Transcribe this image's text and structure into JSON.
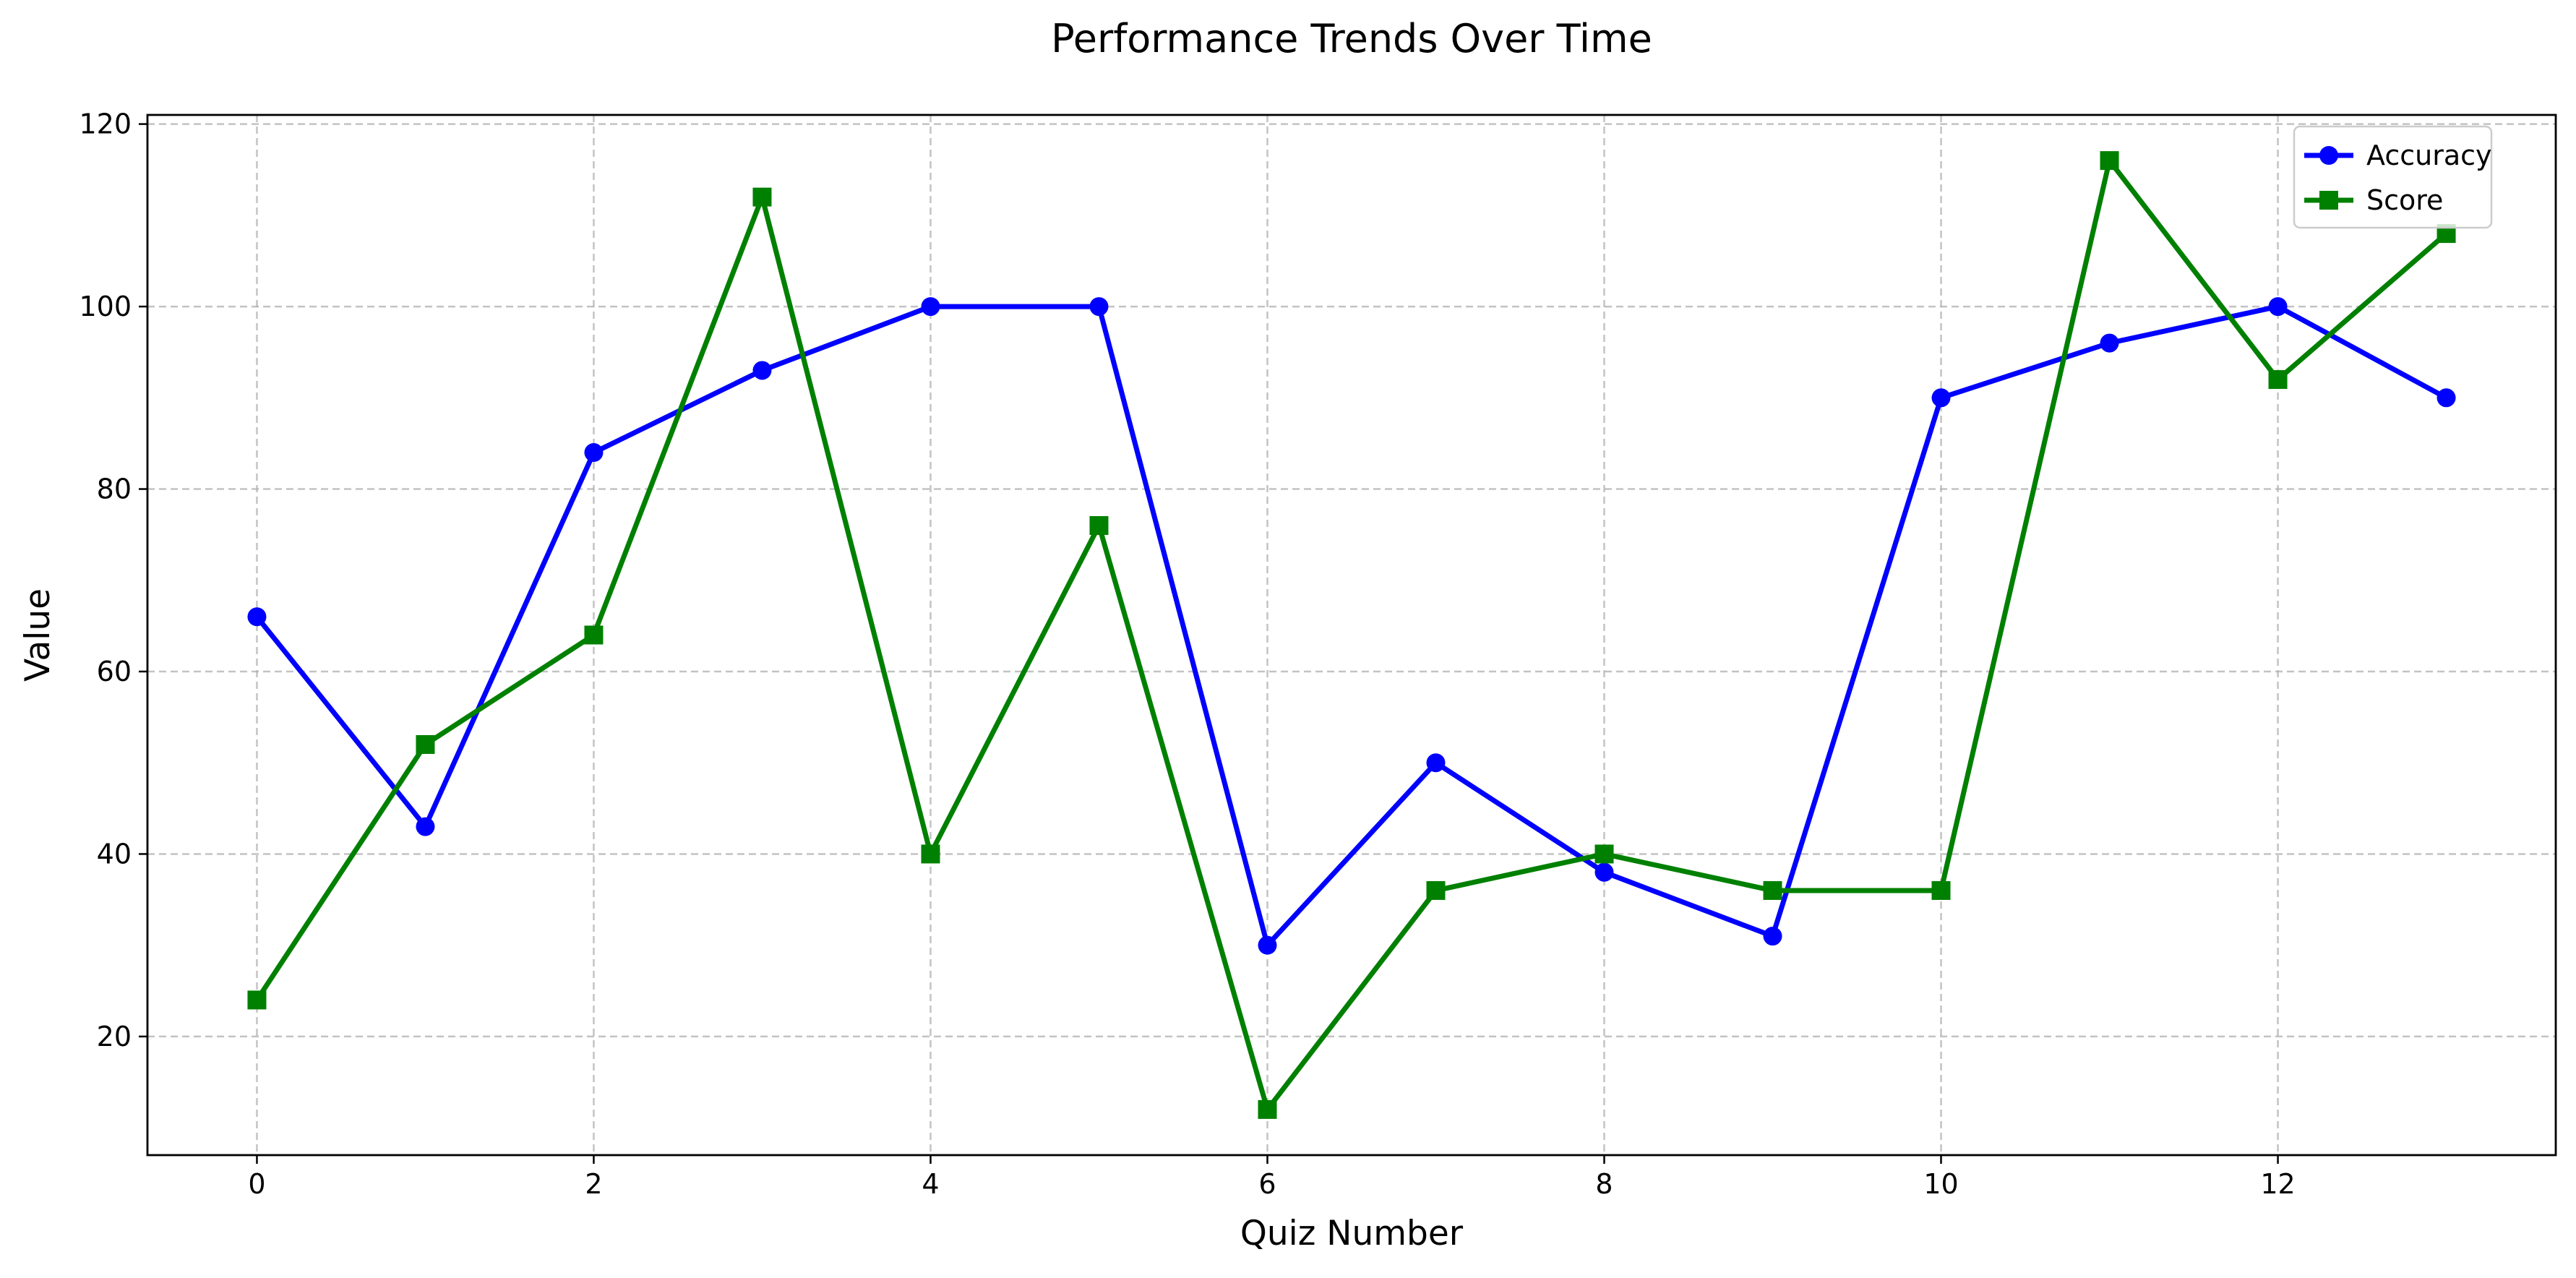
{
  "chart_data": {
    "type": "line",
    "title": "Performance Trends Over Time",
    "xlabel": "Quiz Number",
    "ylabel": "Value",
    "x": [
      0,
      1,
      2,
      3,
      4,
      5,
      6,
      7,
      8,
      9,
      10,
      11,
      12,
      13
    ],
    "xlim": [
      -0.65,
      13.65
    ],
    "ylim": [
      7,
      121
    ],
    "xticks": [
      0,
      2,
      4,
      6,
      8,
      10,
      12
    ],
    "yticks": [
      20,
      40,
      60,
      80,
      100,
      120
    ],
    "grid": true,
    "legend_position": "top-right",
    "series": [
      {
        "name": "Accuracy",
        "color": "#0000ff",
        "marker": "circle",
        "values": [
          66,
          43,
          84,
          93,
          100,
          100,
          30,
          50,
          38,
          31,
          90,
          96,
          100,
          90
        ]
      },
      {
        "name": "Score",
        "color": "#008000",
        "marker": "square",
        "values": [
          24,
          52,
          64,
          112,
          40,
          76,
          12,
          36,
          40,
          36,
          36,
          116,
          92,
          108
        ]
      }
    ]
  }
}
